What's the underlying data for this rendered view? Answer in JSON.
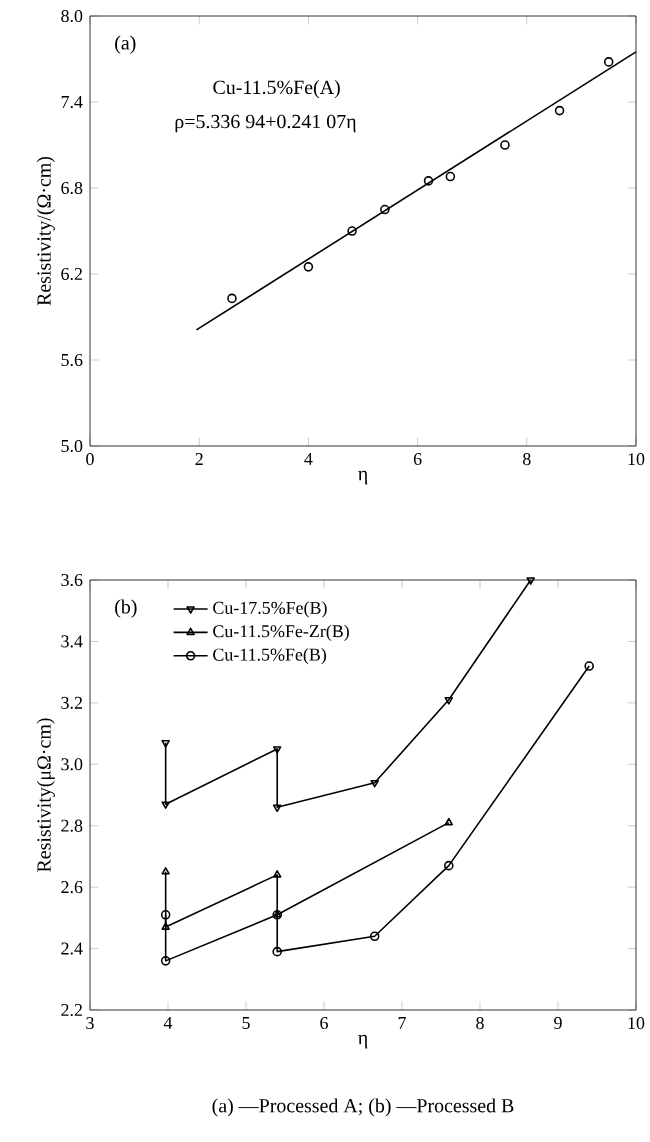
{
  "chart_data": [
    {
      "type": "scatter",
      "xlabel": "η",
      "ylabel": "Resistivity/(Ω·cm)",
      "annotations": [
        "(a)",
        "Cu-11.5%Fe(A)",
        "ρ=5.336 94+0.241 07η"
      ],
      "xlim": [
        0,
        10
      ],
      "ylim": [
        5,
        8
      ],
      "xticks": [
        0,
        2,
        4,
        6,
        8,
        10
      ],
      "yticks": [
        {
          "value": 5,
          "label": "5.0"
        },
        {
          "value": 5.6,
          "label": "5.6"
        },
        {
          "value": 6.2,
          "label": "6.2"
        },
        {
          "value": 6.8,
          "label": "6.8"
        },
        {
          "value": 7.4,
          "label": "7.4"
        },
        {
          "value": 8,
          "label": "8.0"
        }
      ],
      "series": [
        {
          "type": "scatter",
          "marker": "circle",
          "color": "#000000",
          "x": [
            2.6,
            4.0,
            4.8,
            5.4,
            6.2,
            6.6,
            7.6,
            8.6,
            9.5
          ],
          "values": [
            6.03,
            6.25,
            6.5,
            6.65,
            6.85,
            6.88,
            7.1,
            7.34,
            7.68
          ]
        },
        {
          "type": "line",
          "marker": "none",
          "color": "#000000",
          "x": [
            1.95,
            10
          ],
          "values": [
            5.81,
            7.75
          ]
        }
      ]
    },
    {
      "type": "line",
      "xlabel": "η",
      "ylabel": "Resistivity(μΩ·cm)",
      "annotations": [
        "(b)",
        "(a) —Processed A; (b) —Processed B"
      ],
      "legend": "top left",
      "xlim": [
        3,
        10
      ],
      "ylim": [
        2.2,
        3.6
      ],
      "xticks": [
        3,
        4,
        5,
        6,
        7,
        8,
        9,
        10
      ],
      "yticks": [
        {
          "value": 2.2,
          "label": "2.2"
        },
        {
          "value": 2.4,
          "label": "2.4"
        },
        {
          "value": 2.6,
          "label": "2.6"
        },
        {
          "value": 2.8,
          "label": "2.8"
        },
        {
          "value": 3.0,
          "label": "3.0"
        },
        {
          "value": 3.2,
          "label": "3.2"
        },
        {
          "value": 3.4,
          "label": "3.4"
        },
        {
          "value": 3.6,
          "label": "3.6"
        }
      ],
      "series": [
        {
          "name": "Cu-17.5%Fe(B)",
          "marker": "triangle_down",
          "color": "#000000",
          "x": [
            3.97,
            3.97,
            5.4,
            5.4,
            6.65,
            7.6,
            8.65
          ],
          "values": [
            3.07,
            2.87,
            3.05,
            2.86,
            2.94,
            3.21,
            3.6
          ]
        },
        {
          "name": "Cu-11.5%Fe-Zr(B)",
          "marker": "triangle",
          "color": "#000000",
          "x": [
            3.97,
            3.97,
            5.4,
            5.4,
            7.6
          ],
          "values": [
            2.65,
            2.47,
            2.64,
            2.51,
            2.81
          ]
        },
        {
          "name": "Cu-11.5%Fe(B)",
          "marker": "circle",
          "color": "#000000",
          "x": [
            3.97,
            3.97,
            5.4,
            5.4,
            6.65,
            7.6,
            9.4
          ],
          "values": [
            2.51,
            2.36,
            2.51,
            2.39,
            2.44,
            2.67,
            3.32
          ]
        }
      ]
    }
  ]
}
